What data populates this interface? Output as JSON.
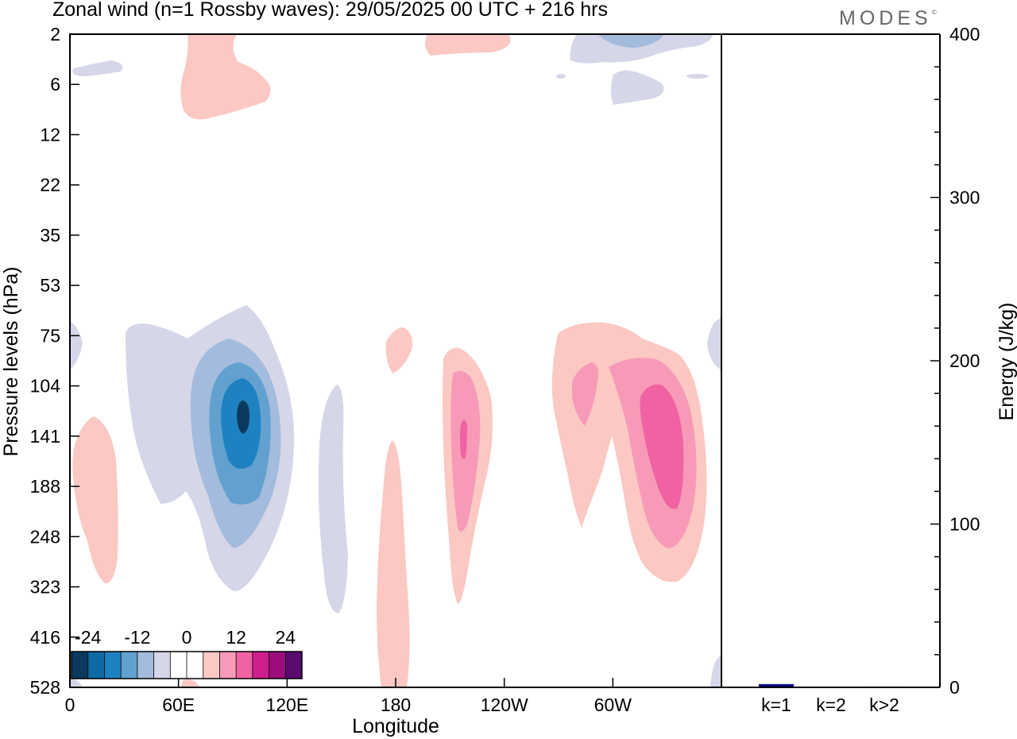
{
  "title": "Zonal wind (n=1 Rossby waves):  29/05/2025  00 UTC  + 216 hrs",
  "brand": "MODES",
  "brand_mark": "©",
  "chart_data": [
    {
      "type": "heatmap",
      "xlabel": "Longitude",
      "ylabel": "Pressure levels (hPa)",
      "x_ticks": [
        "0",
        "60E",
        "120E",
        "180",
        "120W",
        "60W"
      ],
      "x_tick_degrees": [
        0,
        60,
        120,
        180,
        240,
        300
      ],
      "xlim": [
        0,
        360
      ],
      "y_ticks": [
        "2",
        "6",
        "12",
        "22",
        "35",
        "53",
        "75",
        "104",
        "141",
        "188",
        "248",
        "323",
        "416",
        "528"
      ],
      "ylim": [
        2,
        528
      ],
      "colorbar": {
        "labels": [
          "-24",
          "-12",
          "0",
          "12",
          "24"
        ],
        "colors": [
          "#0b3a5e",
          "#0f6aa3",
          "#1f82c0",
          "#62a1cf",
          "#a3bbdc",
          "#d5d6e8",
          "#ffffff",
          "#ffffff",
          "#fbc8c3",
          "#f79ab7",
          "#f062a1",
          "#cf1e8e",
          "#9c0d7b",
          "#5b0a70"
        ]
      },
      "contours": [
        {
          "lon_center": 96,
          "level_center": 141,
          "min_value": -26,
          "note_color": "#0b3a5e"
        },
        {
          "lon_center": 216,
          "level_center": 141,
          "max_value": 18
        },
        {
          "lon_center": 318,
          "level_center": 160,
          "max_value": 18
        }
      ]
    },
    {
      "type": "bar",
      "ylabel": "Energy (J/kg)",
      "categories": [
        "k=1",
        "k=2",
        "k>2"
      ],
      "values": [
        2,
        0,
        0.5
      ],
      "ylim": [
        0,
        400
      ],
      "y_ticks": [
        "0",
        "100",
        "200",
        "300",
        "400"
      ],
      "bar_color": "#0a0a8a"
    }
  ]
}
